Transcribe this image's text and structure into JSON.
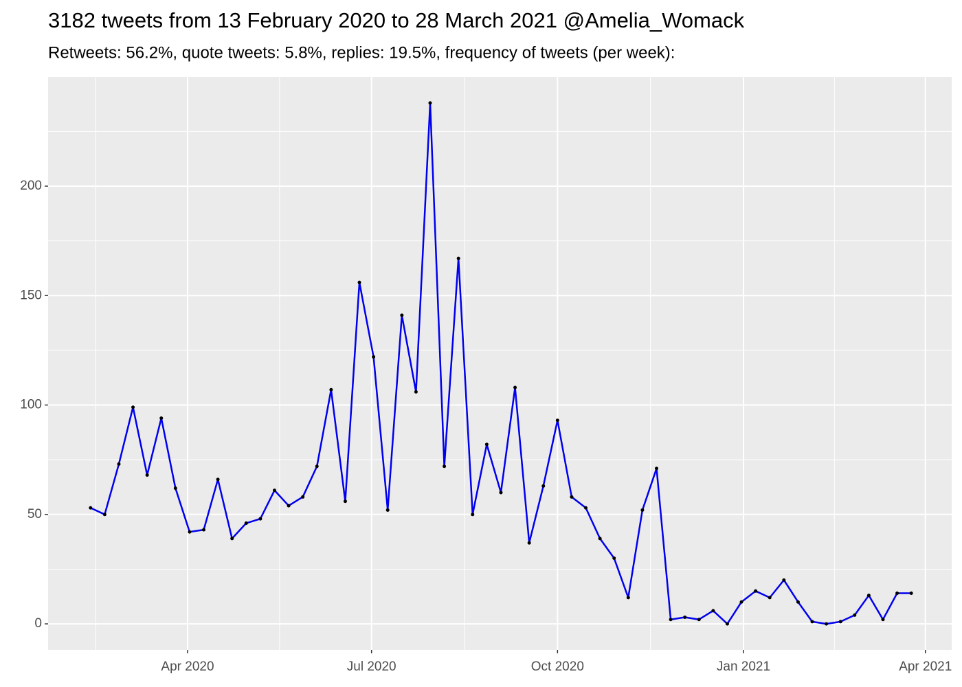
{
  "chart_data": {
    "type": "line",
    "title": "3182 tweets from 13 February 2020 to 28 March 2021 @Amelia_Womack",
    "subtitle": "Retweets: 56.2%, quote tweets: 5.8%, replies: 19.5%, frequency of tweets (per week):",
    "x_start": "2020-02-13",
    "series": [
      {
        "color": "#0000ee",
        "point_color": "#000000",
        "values": [
          53,
          50,
          73,
          99,
          68,
          94,
          62,
          42,
          43,
          66,
          39,
          46,
          48,
          61,
          54,
          58,
          72,
          107,
          56,
          156,
          122,
          52,
          141,
          106,
          238,
          72,
          167,
          50,
          82,
          60,
          108,
          37,
          63,
          93,
          58,
          53,
          39,
          30,
          12,
          52,
          71,
          2,
          3,
          2,
          6,
          0,
          10,
          15,
          12,
          20,
          10,
          1,
          0,
          1,
          4,
          13,
          2,
          14,
          14
        ]
      }
    ],
    "xlim": [
      "2020-01-23",
      "2021-04-14"
    ],
    "xticks": [
      {
        "value": "2020-04-01",
        "label": "Apr 2020"
      },
      {
        "value": "2020-07-01",
        "label": "Jul 2020"
      },
      {
        "value": "2020-10-01",
        "label": "Oct 2020"
      },
      {
        "value": "2021-01-01",
        "label": "Jan 2021"
      },
      {
        "value": "2021-04-01",
        "label": "Apr 2021"
      }
    ],
    "ylim": [
      -11.9,
      249.9
    ],
    "yticks": [
      0,
      50,
      100,
      150,
      200
    ],
    "grid": true
  }
}
